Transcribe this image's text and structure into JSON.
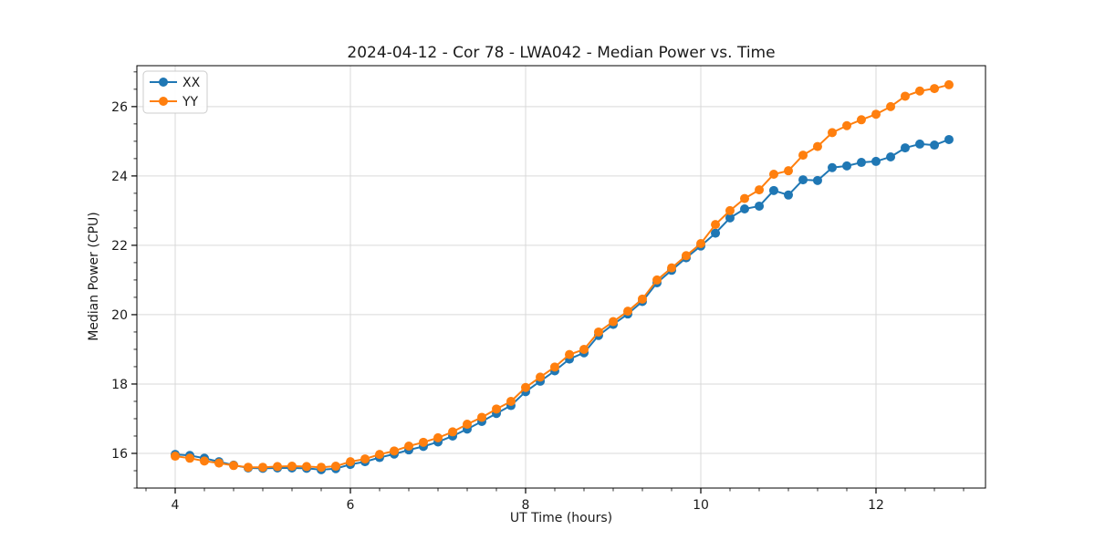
{
  "figure": {
    "title": "2024-04-12 - Cor 78 - LWA042 - Median Power vs. Time"
  },
  "chart_data": {
    "type": "line",
    "title": "2024-04-12 - Cor 78 - LWA042 - Median Power vs. Time",
    "xlabel": "UT Time (hours)",
    "ylabel": "Median Power (CPU)",
    "xlim": [
      3.5625,
      13.25
    ],
    "ylim": [
      15.0,
      27.18
    ],
    "x_major_ticks": [
      4,
      6,
      8,
      10,
      12
    ],
    "x_minor_step": 0.33333,
    "y_major_ticks": [
      16,
      18,
      20,
      22,
      24,
      26
    ],
    "y_minor_step": 0.5,
    "grid": "major",
    "grid_color": "#d9d9d9",
    "spine_color": "#000000",
    "legend": {
      "position": "upper left"
    },
    "marker": "circle",
    "marker_radius": 5,
    "line_width": 2,
    "x": [
      4.0,
      4.167,
      4.333,
      4.5,
      4.667,
      4.833,
      5.0,
      5.167,
      5.333,
      5.5,
      5.667,
      5.833,
      6.0,
      6.167,
      6.333,
      6.5,
      6.667,
      6.833,
      7.0,
      7.167,
      7.333,
      7.5,
      7.667,
      7.833,
      8.0,
      8.167,
      8.333,
      8.5,
      8.667,
      8.833,
      9.0,
      9.167,
      9.333,
      9.5,
      9.667,
      9.833,
      10.0,
      10.167,
      10.333,
      10.5,
      10.667,
      10.833,
      11.0,
      11.167,
      11.333,
      11.5,
      11.667,
      11.833,
      12.0,
      12.167,
      12.333,
      12.5,
      12.667,
      12.833
    ],
    "series": [
      {
        "name": "XX",
        "color": "#1f77b4",
        "values": [
          15.97,
          15.94,
          15.86,
          15.76,
          15.66,
          15.58,
          15.57,
          15.58,
          15.58,
          15.57,
          15.53,
          15.56,
          15.68,
          15.76,
          15.88,
          15.98,
          16.1,
          16.2,
          16.33,
          16.5,
          16.7,
          16.92,
          17.15,
          17.38,
          17.78,
          18.08,
          18.38,
          18.72,
          18.9,
          19.4,
          19.72,
          20.02,
          20.38,
          20.92,
          21.28,
          21.64,
          21.98,
          22.35,
          22.79,
          23.05,
          23.13,
          23.58,
          23.45,
          23.89,
          23.87,
          24.24,
          24.29,
          24.39,
          24.42,
          24.55,
          24.81,
          24.92,
          24.89,
          25.05
        ]
      },
      {
        "name": "YY",
        "color": "#ff7f0e",
        "values": [
          15.92,
          15.86,
          15.78,
          15.72,
          15.65,
          15.6,
          15.6,
          15.62,
          15.63,
          15.62,
          15.6,
          15.63,
          15.76,
          15.84,
          15.97,
          16.07,
          16.21,
          16.32,
          16.45,
          16.62,
          16.84,
          17.04,
          17.28,
          17.5,
          17.9,
          18.2,
          18.49,
          18.85,
          19.0,
          19.5,
          19.8,
          20.1,
          20.45,
          21.0,
          21.35,
          21.7,
          22.05,
          22.6,
          23.0,
          23.35,
          23.6,
          24.05,
          24.15,
          24.6,
          24.85,
          25.25,
          25.45,
          25.62,
          25.78,
          26.0,
          26.3,
          26.45,
          26.52,
          26.63
        ]
      }
    ]
  }
}
